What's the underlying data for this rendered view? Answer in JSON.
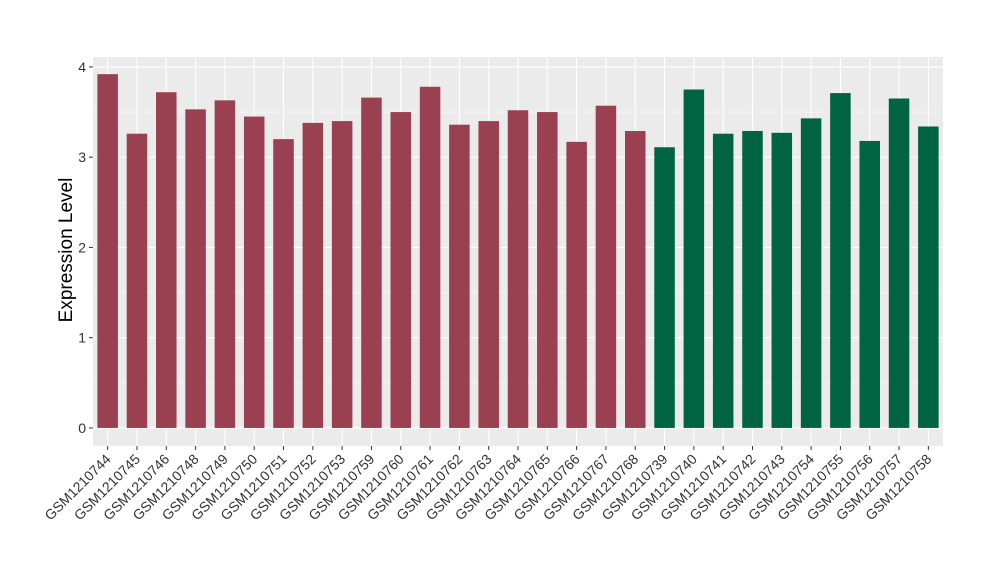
{
  "chart_data": {
    "type": "bar",
    "title": "",
    "xlabel": "",
    "ylabel": "Expression Level",
    "ylim": [
      -0.2,
      4.11
    ],
    "yticks": [
      0,
      1,
      2,
      3,
      4
    ],
    "grid": true,
    "legend": "none",
    "categories": [
      "GSM1210744",
      "GSM1210745",
      "GSM1210746",
      "GSM1210748",
      "GSM1210749",
      "GSM1210750",
      "GSM1210751",
      "GSM1210752",
      "GSM1210753",
      "GSM1210759",
      "GSM1210760",
      "GSM1210761",
      "GSM1210762",
      "GSM1210763",
      "GSM1210764",
      "GSM1210765",
      "GSM1210766",
      "GSM1210767",
      "GSM1210768",
      "GSM1210739",
      "GSM1210740",
      "GSM1210741",
      "GSM1210742",
      "GSM1210743",
      "GSM1210754",
      "GSM1210755",
      "GSM1210756",
      "GSM1210757",
      "GSM1210758"
    ],
    "values": [
      3.92,
      3.26,
      3.72,
      3.53,
      3.63,
      3.45,
      3.2,
      3.38,
      3.4,
      3.66,
      3.5,
      3.78,
      3.36,
      3.4,
      3.52,
      3.5,
      3.17,
      3.57,
      3.29,
      3.11,
      3.75,
      3.26,
      3.29,
      3.27,
      3.43,
      3.71,
      3.18,
      3.65,
      3.34
    ],
    "group_sizes": [
      19,
      10
    ],
    "colors": [
      "#9a4050",
      "#006443"
    ],
    "panel_background": "#ebebeb",
    "grid_color": "#ffffff"
  }
}
